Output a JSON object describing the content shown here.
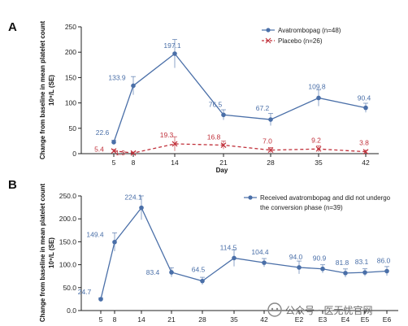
{
  "watermark": {
    "text": "公众号 · 医无忧官网"
  },
  "colors": {
    "avatrombopag": "#4a6fa8",
    "placebo": "#c0303a",
    "axis": "#222222"
  },
  "chart_data": [
    {
      "panel": "A",
      "type": "line",
      "xlabel": "Day",
      "ylabel": "Change from baseline in mean platelet count, 10⁹/L (SE)",
      "categories": [
        "5",
        "8",
        "14",
        "21",
        "28",
        "35",
        "42"
      ],
      "ylim": [
        0,
        250
      ],
      "yticks": [
        "0",
        "50",
        "100",
        "150",
        "200",
        "250"
      ],
      "legend_position": "top-right",
      "series": [
        {
          "name": "Avatrombopag (n=48)",
          "color": "#4a6fa8",
          "line_style": "solid",
          "marker": "dot",
          "values": [
            22.6,
            133.9,
            197.1,
            76.5,
            67.2,
            109.8,
            90.4
          ],
          "labels": [
            "22.6",
            "133.9",
            "197.1",
            "76.5",
            "67.2",
            "109.8",
            "90.4"
          ],
          "se": [
            4,
            18,
            28,
            10,
            12,
            16,
            9
          ]
        },
        {
          "name": "Placebo (n=26)",
          "color": "#c0303a",
          "line_style": "dashed",
          "marker": "x",
          "values": [
            5.4,
            1.3,
            19.3,
            16.8,
            7.0,
            9.2,
            3.8
          ],
          "labels": [
            "5.4",
            "1.3",
            "19.3",
            "16.8",
            "7.0",
            "9.2",
            "3.8"
          ],
          "se": [
            3,
            2,
            14,
            8,
            5,
            6,
            3
          ]
        }
      ]
    },
    {
      "panel": "B",
      "type": "line",
      "xlabel": "",
      "ylabel": "Change from baseline in mean platelet count, 10⁹/L (SE)",
      "categories": [
        "5",
        "8",
        "14",
        "21",
        "28",
        "35",
        "42",
        "E2",
        "E3",
        "E4",
        "E5",
        "E6"
      ],
      "ylim": [
        0,
        250
      ],
      "yticks": [
        "0.0",
        "50.0",
        "100.0",
        "150.0",
        "200.0",
        "250.0"
      ],
      "legend_position": "top-right",
      "series": [
        {
          "name": "Received avatrombopag and did not undergo the conversion phase (n=39)",
          "legend_lines": [
            "Received avatrombopag and did not undergo",
            "the conversion phase (n=39)"
          ],
          "color": "#4a6fa8",
          "line_style": "solid",
          "marker": "dot",
          "values": [
            24.7,
            149.4,
            224.1,
            83.4,
            64.5,
            114.5,
            104.4,
            94.0,
            90.9,
            81.8,
            83.1,
            86.0
          ],
          "labels": [
            "24.7",
            "149.4",
            "224.1",
            "83.4",
            "64.5",
            "114.5",
            "104.4",
            "94.0",
            "90.9",
            "81.8",
            "83.1",
            "86.0"
          ],
          "se": [
            3,
            20,
            26,
            10,
            8,
            18,
            9,
            14,
            9,
            9,
            8,
            10
          ]
        }
      ]
    }
  ]
}
